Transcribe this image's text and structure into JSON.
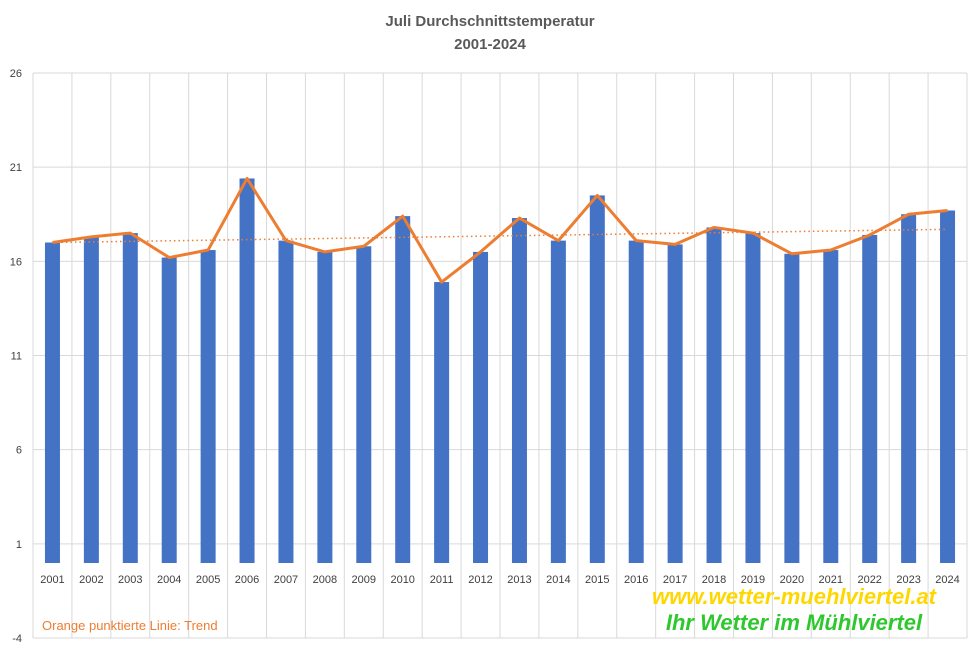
{
  "chart_data": {
    "type": "bar",
    "title": "Juli Durchschnittstemperatur",
    "subtitle": "2001-2024",
    "categories": [
      "2001",
      "2002",
      "2003",
      "2004",
      "2005",
      "2006",
      "2007",
      "2008",
      "2009",
      "2010",
      "2011",
      "2012",
      "2013",
      "2014",
      "2015",
      "2016",
      "2017",
      "2018",
      "2019",
      "2020",
      "2021",
      "2022",
      "2023",
      "2024"
    ],
    "values": [
      17.0,
      17.3,
      17.5,
      16.2,
      16.6,
      20.4,
      17.1,
      16.5,
      16.8,
      18.4,
      14.9,
      16.5,
      18.3,
      17.1,
      19.5,
      17.1,
      16.9,
      17.8,
      17.5,
      16.4,
      16.6,
      17.4,
      18.5,
      18.7
    ],
    "series": [
      {
        "type": "bar",
        "color": "#4472C4"
      },
      {
        "type": "line",
        "color": "#ED7D31"
      }
    ],
    "trend": {
      "style": "dotted",
      "color": "#ED7D31",
      "start": 17.0,
      "end": 17.7
    },
    "ylim": [
      -4,
      26
    ],
    "yticks": [
      -4,
      1,
      6,
      11,
      16,
      21,
      26
    ],
    "xlabel": "",
    "ylabel": "",
    "grid": true,
    "annotation": "Orange punktierte Linie: Trend",
    "annotation_color": "#ED7D31"
  },
  "watermark": {
    "line1": "www.wetter-muehlviertel.at",
    "line1_color": "#FFD700",
    "line2": "Ihr Wetter im Mühlviertel",
    "line2_color": "#2EC82E"
  }
}
